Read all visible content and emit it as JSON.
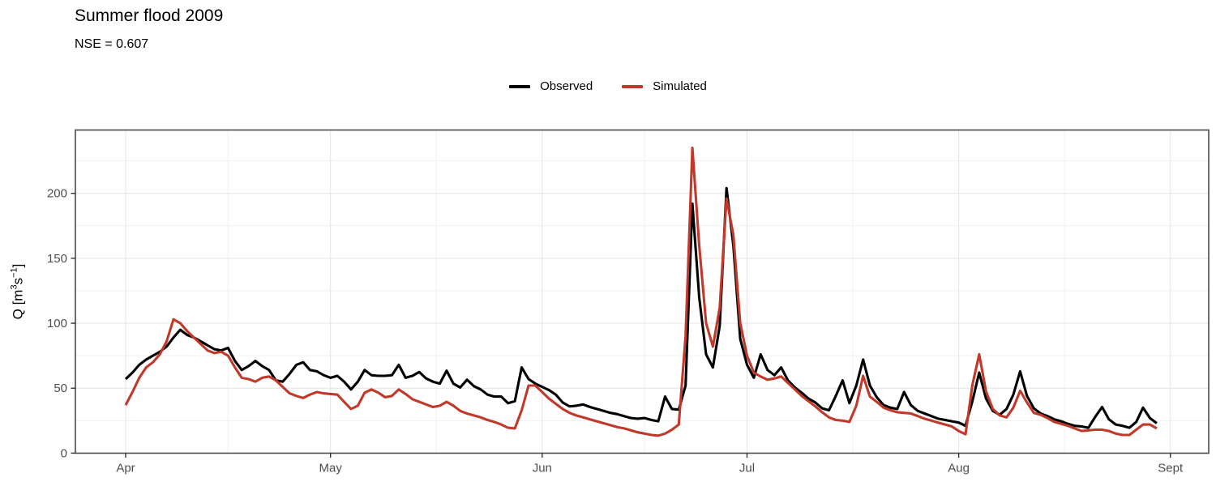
{
  "chart_data": {
    "type": "line",
    "title": "Summer flood 2009",
    "subtitle": "NSE = 0.607",
    "ylabel_parts": {
      "prefix": "Q [m",
      "sup1": "3",
      "mid": "s",
      "sup2": "−1",
      "suffix": "]"
    },
    "x_axis": {
      "tick_labels": [
        "Apr",
        "May",
        "Jun",
        "Jul",
        "Aug",
        "Sept"
      ],
      "tick_days": [
        0,
        30,
        61,
        91,
        122,
        153
      ],
      "minor_days": [
        15,
        45.5,
        76,
        106.5,
        137.5
      ],
      "start_date": "Apr 1",
      "end_date": "Aug 30"
    },
    "y_axis": {
      "ticks": [
        0,
        50,
        100,
        150,
        200
      ],
      "minor": [
        25,
        75,
        125,
        175,
        225
      ],
      "lim": [
        0,
        248
      ]
    },
    "grid": true,
    "legend_position": "top-center",
    "series": [
      {
        "name": "Observed",
        "color": "#000000",
        "values": [
          57,
          62,
          68,
          72,
          75,
          78,
          82,
          89,
          95,
          91,
          89,
          86,
          83,
          80,
          79,
          81,
          71,
          64,
          67,
          71,
          67,
          64,
          56,
          55,
          61,
          68,
          70,
          64,
          63,
          60,
          58,
          59.5,
          55,
          49,
          55,
          64,
          60,
          59.5,
          59.5,
          60,
          68,
          58,
          59.5,
          62.5,
          57.5,
          55,
          53.5,
          63.5,
          53.5,
          50.5,
          56.5,
          51.5,
          49,
          45,
          43.5,
          43.5,
          38.5,
          40,
          66,
          57,
          53.5,
          51,
          48.5,
          45,
          39,
          36,
          36.5,
          37.5,
          35.5,
          34,
          32.5,
          31,
          30,
          28.5,
          27,
          26.5,
          27,
          25.5,
          24.5,
          43.5,
          34,
          33.5,
          52,
          192,
          120,
          76,
          66,
          98,
          204,
          160,
          88,
          68,
          58,
          76,
          64,
          60,
          66,
          56,
          50.5,
          46.5,
          42,
          39,
          34.5,
          33,
          44,
          56,
          38.5,
          52,
          72,
          52,
          43,
          37,
          35,
          34,
          47,
          37,
          32.5,
          30.5,
          28.5,
          26.5,
          25.5,
          24.5,
          23.5,
          21,
          40,
          62,
          42,
          32.5,
          29.5,
          34,
          45,
          63,
          44,
          34.5,
          30.5,
          28.5,
          26,
          24.5,
          22.5,
          21,
          20.5,
          19.5,
          28,
          35.5,
          26,
          22,
          21,
          19.5,
          24,
          35,
          27,
          23
        ]
      },
      {
        "name": "Simulated",
        "color": "#C0392B",
        "values": [
          37,
          47,
          58,
          66,
          70,
          76,
          86,
          103,
          100,
          94,
          89,
          84,
          79,
          77,
          78,
          75,
          66,
          58,
          57,
          55,
          58,
          59,
          56,
          51,
          46,
          44,
          42.5,
          45,
          47,
          46,
          45.5,
          45,
          39.5,
          34,
          36.5,
          46.5,
          49,
          46.5,
          43,
          44,
          49,
          45.5,
          41.5,
          39.5,
          37.5,
          35.5,
          36.5,
          39.5,
          36.5,
          32.5,
          30.5,
          29,
          27.5,
          25.5,
          24,
          22,
          19.5,
          19,
          33,
          52,
          52,
          47,
          42,
          38,
          34,
          31,
          29,
          27.5,
          26,
          24.5,
          23,
          21.5,
          20,
          19,
          17.5,
          16,
          15,
          14,
          13.5,
          15,
          18,
          22,
          90,
          235,
          160,
          100,
          82,
          112,
          196,
          168,
          100,
          75,
          62,
          59,
          56.5,
          57.5,
          59,
          54,
          49,
          44,
          40,
          36,
          31.5,
          27.5,
          25.5,
          25,
          24,
          36.5,
          59.5,
          43.5,
          39.5,
          35,
          33,
          31.5,
          31,
          30.5,
          28.5,
          26.5,
          25,
          23.5,
          22,
          20.5,
          17,
          14.5,
          52.5,
          76,
          47.5,
          34,
          29,
          27.5,
          35,
          48,
          39,
          31,
          29.5,
          27,
          24,
          22.5,
          21,
          19,
          17,
          17.5,
          18,
          18,
          17,
          15,
          14,
          14,
          18,
          22,
          22,
          19
        ]
      }
    ]
  },
  "colors": {
    "background": "#FFFFFF",
    "axis_text": "#4D4D4D",
    "panel_border": "#4A4A4A",
    "tick_mark": "#333333",
    "grid_major": "#E4E4E4",
    "grid_minor": "#F1F1F1"
  }
}
